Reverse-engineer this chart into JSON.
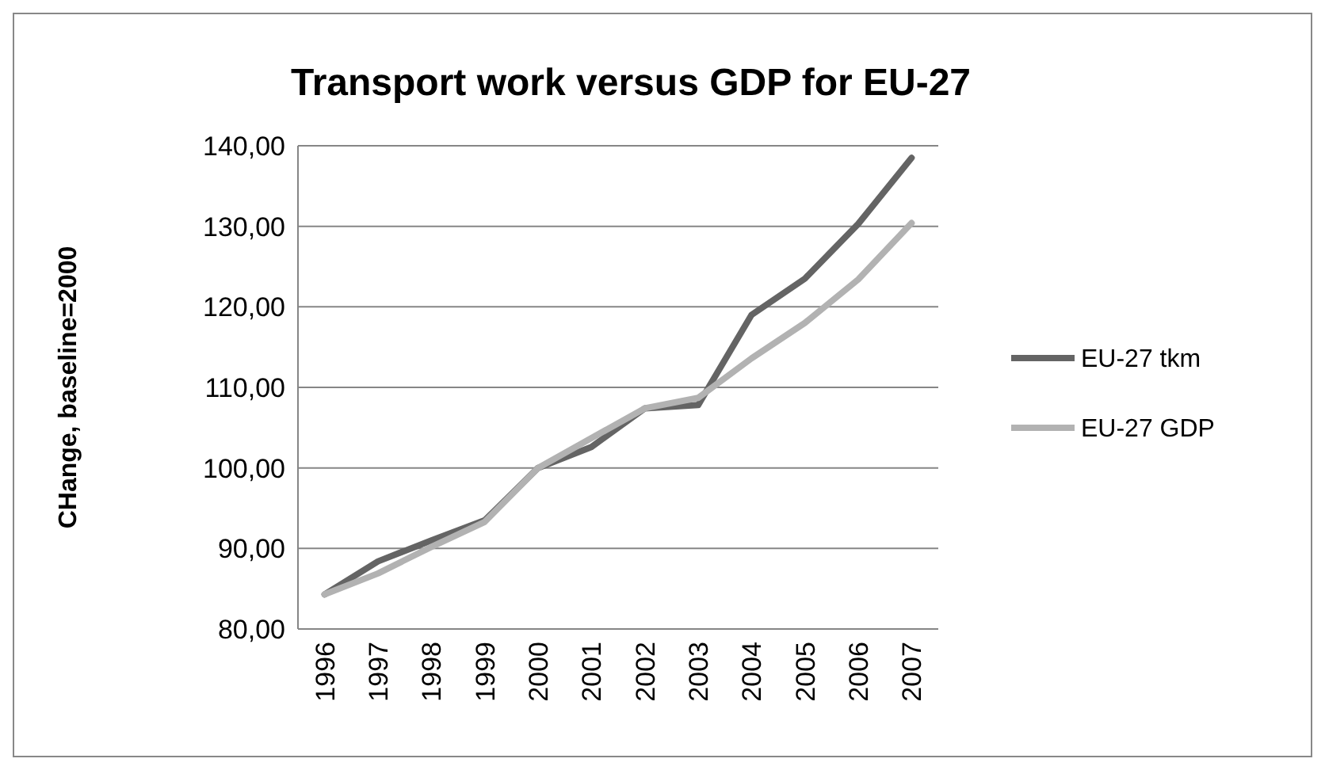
{
  "chart_data": {
    "type": "line",
    "title": "Transport work versus GDP for EU-27",
    "ylabel": "CHange, baseline=2000",
    "categories": [
      "1996",
      "1997",
      "1998",
      "1999",
      "2000",
      "2001",
      "2002",
      "2003",
      "2004",
      "2005",
      "2006",
      "2007"
    ],
    "series": [
      {
        "name": "EU-27 tkm",
        "color": "#646464",
        "values": [
          84.3,
          88.4,
          91.0,
          93.5,
          100,
          102.6,
          107.4,
          107.8,
          119.0,
          123.5,
          130.3,
          138.5
        ]
      },
      {
        "name": "EU-27 GDP",
        "color": "#b2b2b2",
        "values": [
          84.3,
          86.9,
          90.2,
          93.3,
          100,
          103.7,
          107.4,
          108.7,
          113.6,
          118.0,
          123.4,
          130.4
        ]
      }
    ],
    "ylim": [
      80,
      140
    ],
    "yticks": [
      {
        "value": 80,
        "label": "80,00"
      },
      {
        "value": 90,
        "label": "90,00"
      },
      {
        "value": 100,
        "label": "100,00"
      },
      {
        "value": 110,
        "label": "110,00"
      },
      {
        "value": 120,
        "label": "120,00"
      },
      {
        "value": 130,
        "label": "130,00"
      },
      {
        "value": 140,
        "label": "140,00"
      }
    ],
    "grid": "y",
    "legend": "right",
    "marker": "none",
    "line_style": "solid"
  }
}
